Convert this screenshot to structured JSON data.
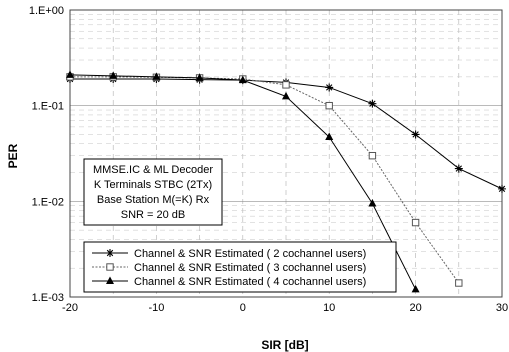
{
  "chart_data": {
    "type": "line",
    "xlabel": "SIR [dB]",
    "ylabel": "PER",
    "xlim": [
      -20,
      30
    ],
    "ylim": [
      0.001,
      1
    ],
    "yscale": "log",
    "x_ticks": [
      "-20",
      "-10",
      "0",
      "10",
      "20",
      "30"
    ],
    "y_ticks": [
      "1.E-03",
      "1.E-02",
      "1.E-01",
      "1.E+00"
    ],
    "grid": "dashed",
    "annotation": [
      "MMSE.IC & ML Decoder",
      "K Terminals  STBC (2Tx)",
      "Base Station  M(=K) Rx",
      "SNR = 20 dB"
    ],
    "legend_position": "bottom-left",
    "series": [
      {
        "name": "Channel & SNR Estimated ( 2 cochannel users)",
        "marker": "asterisk",
        "x": [
          -20,
          -15,
          -10,
          -5,
          0,
          5,
          10,
          15,
          20,
          25,
          30
        ],
        "y": [
          0.19,
          0.19,
          0.19,
          0.187,
          0.185,
          0.175,
          0.155,
          0.105,
          0.05,
          0.022,
          0.0135
        ]
      },
      {
        "name": "Channel & SNR Estimated ( 3 cochannel users)",
        "marker": "square",
        "x": [
          -20,
          -15,
          -10,
          -5,
          0,
          5,
          10,
          15,
          20,
          25
        ],
        "y": [
          0.2,
          0.2,
          0.198,
          0.195,
          0.19,
          0.165,
          0.1,
          0.03,
          0.006,
          0.0014
        ]
      },
      {
        "name": "Channel & SNR Estimated ( 4 cochannel users)",
        "marker": "triangle",
        "x": [
          -20,
          -15,
          -10,
          -5,
          0,
          5,
          10,
          15,
          20
        ],
        "y": [
          0.21,
          0.205,
          0.2,
          0.195,
          0.185,
          0.125,
          0.047,
          0.0095,
          0.0012
        ]
      }
    ]
  }
}
